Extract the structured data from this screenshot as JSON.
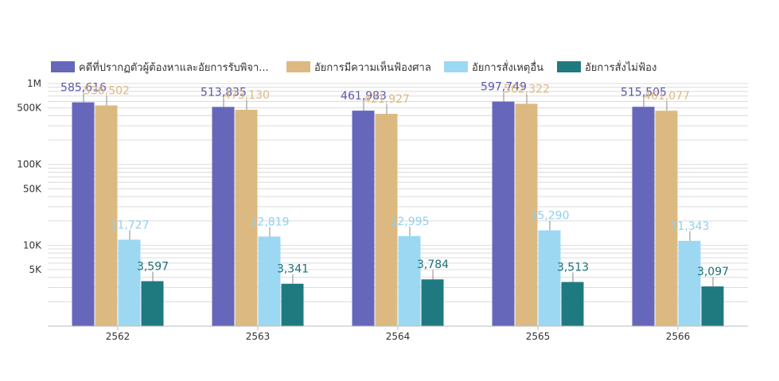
{
  "chart_data": {
    "type": "bar",
    "title": "",
    "xlabel": "",
    "ylabel": "",
    "categories": [
      "2562",
      "2563",
      "2564",
      "2565",
      "2566"
    ],
    "y_scale": "log",
    "ylim": [
      1000,
      1000000
    ],
    "y_ticks": [
      {
        "value": 1000000,
        "label": "1M"
      },
      {
        "value": 500000,
        "label": "500K"
      },
      {
        "value": 100000,
        "label": "100K"
      },
      {
        "value": 50000,
        "label": "50K"
      },
      {
        "value": 10000,
        "label": "10K"
      },
      {
        "value": 5000,
        "label": "5K"
      }
    ],
    "grid": true,
    "legend_position": "top-left",
    "series": [
      {
        "name": "คดีที่ปรากฏตัวผู้ต้องหาและอัยการรับพิจา...",
        "color": "#6667bb",
        "values": [
          585616,
          513835,
          461983,
          597749,
          515505
        ],
        "labels": [
          "585,616",
          "513,835",
          "461,983",
          "597,749",
          "515,505"
        ]
      },
      {
        "name": "อัยการมีความเห็นฟ้องศาล",
        "color": "#ddb982",
        "values": [
          536502,
          473130,
          421927,
          562322,
          461077
        ],
        "labels": [
          "536,502",
          "473,130",
          "421,927",
          "562,322",
          "461,077"
        ]
      },
      {
        "name": "อัยการสั่งเหตุอื่น",
        "color": "#9dd8f2",
        "values": [
          11727,
          12819,
          12995,
          15290,
          11343
        ],
        "labels": [
          "11,727",
          "12,819",
          "12,995",
          "15,290",
          "11,343"
        ]
      },
      {
        "name": "อัยการสั่งไม่ฟ้อง",
        "color": "#1f7a80",
        "values": [
          3597,
          3341,
          3784,
          3513,
          3097
        ],
        "labels": [
          "3,597",
          "3,341",
          "3,784",
          "3,513",
          "3,097"
        ]
      }
    ]
  }
}
